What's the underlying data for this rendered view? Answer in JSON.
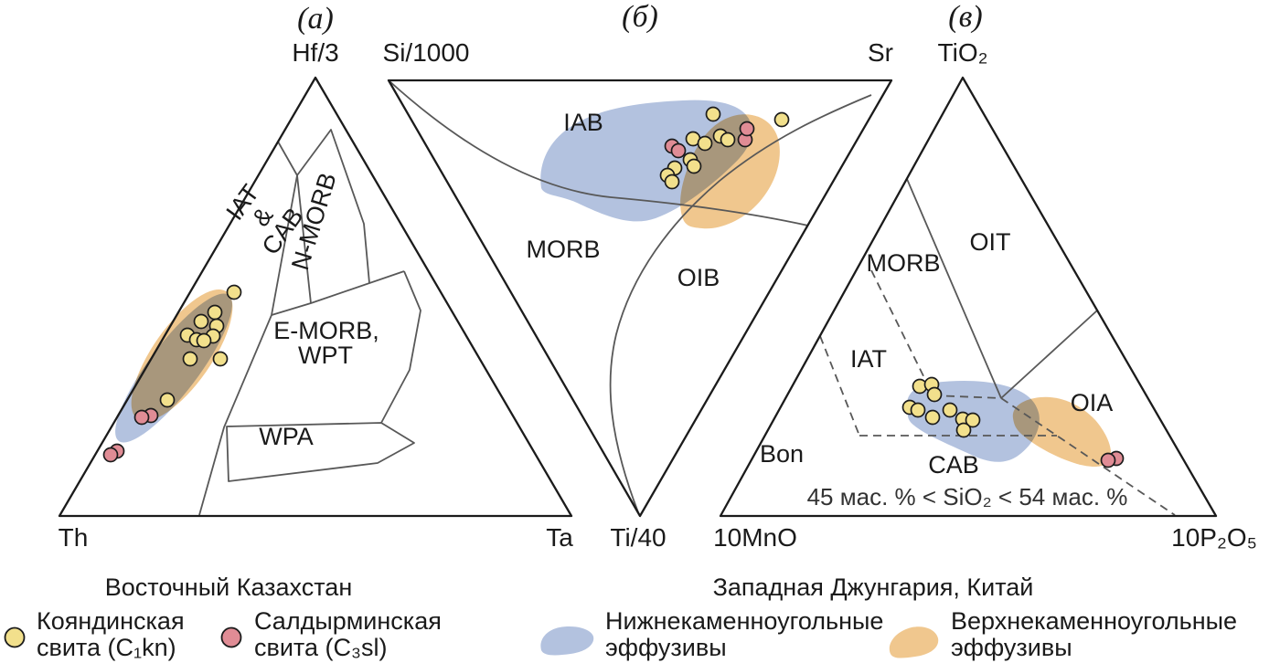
{
  "figure": {
    "panel_titles": {
      "a": "(а)",
      "b": "(б)",
      "v": "(в)"
    },
    "panels": {
      "a": {
        "apex": "Hf/3",
        "bottom_left": "Th",
        "bottom_right": "Ta",
        "fields": {
          "iat_cab": [
            "IAT",
            "&",
            "CAB"
          ],
          "n_morb": "N-MORB",
          "e_morb": [
            "E-MORB,",
            "WPT"
          ],
          "wpa": "WPA"
        }
      },
      "b": {
        "top_left": "Si/1000",
        "top_right": "Sr",
        "bottom": "Ti/40",
        "fields": {
          "iab": "IAB",
          "morb": "MORB",
          "oib": "OIB"
        }
      },
      "v": {
        "apex": "TiO₂",
        "bottom_left": "10MnO",
        "bottom_right": "10P₂O₅",
        "fields": {
          "morb": "MORB",
          "oit": "OIT",
          "iat": "IAT",
          "bon": "Bon",
          "cab": "CAB",
          "oia": "OIA"
        },
        "note": "45 мас. % < SiO₂ < 54 мас. %"
      }
    },
    "region_titles": {
      "east_kazakhstan": "Восточный Казахстан",
      "west_junggar": "Западная Джунгария, Китай"
    },
    "legend": {
      "items": [
        {
          "line1": "Кояндинская",
          "line2": "свита (C₁kn)",
          "swatch": "circle",
          "color": "#F2E08C"
        },
        {
          "line1": "Салдырминская",
          "line2": "свита (C₃sl)",
          "swatch": "circle",
          "color": "#E08C95"
        },
        {
          "line1": "Нижнекаменноугольные",
          "line2": "эффузивы",
          "swatch": "blob",
          "color": "#B3C2DF"
        },
        {
          "line1": "Верхнекаменноугольные",
          "line2": "эффузивы",
          "swatch": "blob",
          "color": "#F0C78E"
        }
      ]
    },
    "colors": {
      "kojandy_fill": "#F2E08C",
      "saldyrma_fill": "#E08C95",
      "lower_carboniferous_region": "#B3C2DF",
      "upper_carboniferous_region": "#F0C78E",
      "marker_stroke": "#1c1c1c"
    }
  },
  "chart_data": {
    "type": "scatter",
    "subtype": "ternary-discrimination-diagrams",
    "coordinates_space": "image_px",
    "panels": [
      {
        "id": "a",
        "title": "(а)",
        "axes": {
          "top": "Hf/3",
          "bottom_left": "Th",
          "bottom_right": "Ta"
        },
        "field_labels": [
          "IAT & CAB",
          "N-MORB",
          "E-MORB, WPT",
          "WPA"
        ],
        "series": [
          {
            "name": "Кояндинская свита (C₁kn)",
            "color": "#F2E08C",
            "radius": 7.5,
            "points": [
              [
                256,
                320
              ],
              [
                235,
                342
              ],
              [
                220,
                352
              ],
              [
                237,
                357
              ],
              [
                205,
                367
              ],
              [
                215,
                372
              ],
              [
                233,
                368
              ],
              [
                223,
                373
              ],
              [
                208,
                393
              ],
              [
                241,
                393
              ],
              [
                183,
                438
              ]
            ]
          },
          {
            "name": "Салдырминская свита (C₃sl)",
            "color": "#E08C95",
            "radius": 7.5,
            "points": [
              [
                165,
                455
              ],
              [
                155,
                457
              ],
              [
                128,
                494
              ],
              [
                121,
                498
              ]
            ]
          }
        ],
        "shaded_regions": [
          "Нижнекаменноугольные эффузивы",
          "Верхнекаменноугольные эффузивы"
        ]
      },
      {
        "id": "b",
        "title": "(б)",
        "axes": {
          "top_left": "Si/1000",
          "top_right": "Sr",
          "bottom": "Ti/40"
        },
        "field_labels": [
          "IAB",
          "MORB",
          "OIB"
        ],
        "series": [
          {
            "name": "Кояндинская свита (C₁kn)",
            "color": "#F2E08C",
            "radius": 7.5,
            "points": [
              [
                780,
                125
              ],
              [
                855,
                131
              ],
              [
                788,
                149
              ],
              [
                796,
                153
              ],
              [
                758,
                152
              ],
              [
                771,
                157
              ],
              [
                755,
                175
              ],
              [
                759,
                182
              ],
              [
                738,
                184
              ],
              [
                730,
                192
              ],
              [
                735,
                199
              ]
            ]
          },
          {
            "name": "Салдырминская свита (C₃sl)",
            "color": "#E08C95",
            "radius": 7.5,
            "points": [
              [
                735,
                160
              ],
              [
                742,
                165
              ],
              [
                815,
                153
              ],
              [
                817,
                141
              ]
            ]
          }
        ],
        "shaded_regions": [
          "Нижнекаменноугольные эффузивы",
          "Верхнекаменноугольные эффузивы"
        ]
      },
      {
        "id": "v",
        "title": "(в)",
        "axes": {
          "top": "TiO₂",
          "bottom_left": "10MnO",
          "bottom_right": "10P₂O₅"
        },
        "field_labels": [
          "MORB",
          "OIT",
          "IAT",
          "Bon",
          "CAB",
          "OIA"
        ],
        "annotation": "45 мас. % < SiO₂ < 54 мас. %",
        "series": [
          {
            "name": "Кояндинская свита (C₁kn)",
            "color": "#F2E08C",
            "radius": 7.5,
            "points": [
              [
                1006,
                423
              ],
              [
                1019,
                421
              ],
              [
                1022,
                432
              ],
              [
                995,
                446
              ],
              [
                1004,
                449
              ],
              [
                1020,
                457
              ],
              [
                1039,
                449
              ],
              [
                1053,
                459
              ],
              [
                1064,
                460
              ],
              [
                1054,
                471
              ]
            ]
          },
          {
            "name": "Салдырминская свита (C₃sl)",
            "color": "#E08C95",
            "radius": 7.5,
            "points": [
              [
                1221,
                502
              ],
              [
                1212,
                504
              ]
            ]
          }
        ],
        "shaded_regions": [
          "Нижнекаменноугольные эффузивы",
          "Верхнекаменноугольные эффузивы"
        ]
      }
    ],
    "legend_entries": [
      "Кояндинская свита (C₁kn)",
      "Салдырминская свита (C₃sl)",
      "Нижнекаменноугольные эффузивы",
      "Верхнекаменноугольные эффузивы"
    ],
    "region_titles": [
      "Восточный Казахстан",
      "Западная Джунгария, Китай"
    ]
  }
}
